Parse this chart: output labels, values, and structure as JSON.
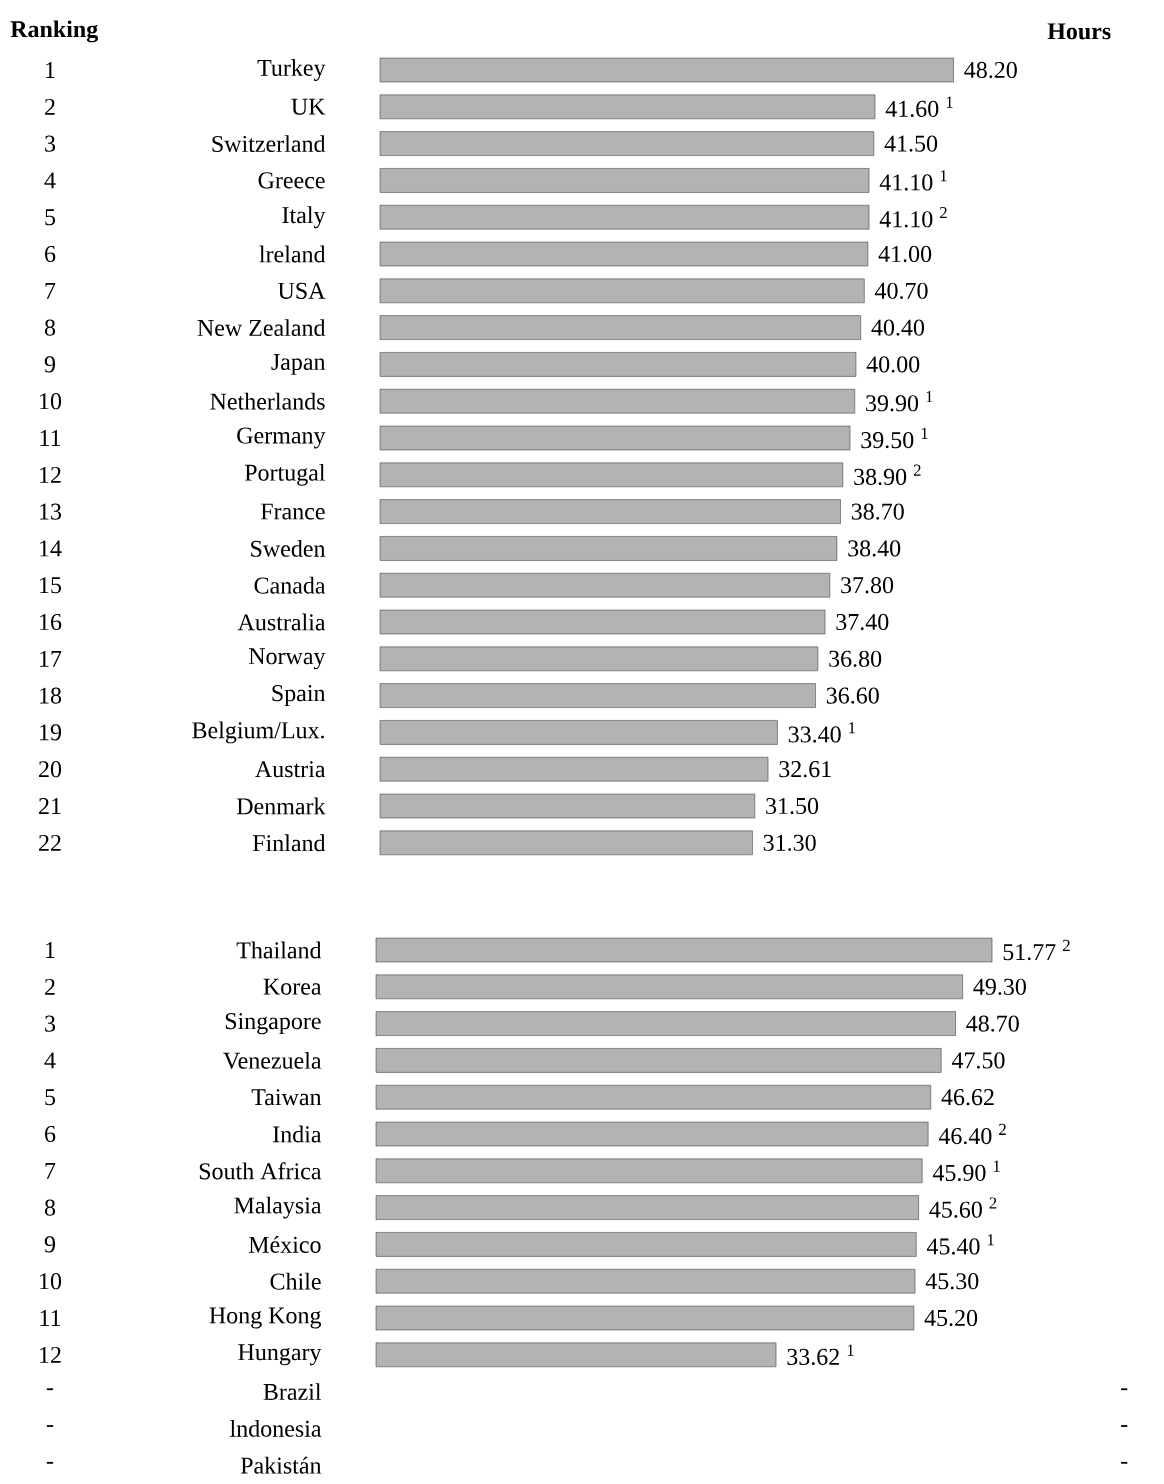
{
  "chart_data": [
    {
      "type": "bar",
      "orientation": "horizontal",
      "xlabel": "Hours",
      "ylabel": "Ranking",
      "color": "#b3b3b3",
      "categories": [
        "Turkey",
        "UK",
        "Switzerland",
        "Greece",
        "Italy",
        "lreland",
        "USA",
        "New Zealand",
        "Japan",
        "Netherlands",
        "Germany",
        "Portugal",
        "France",
        "Sweden",
        "Canada",
        "Australia",
        "Norway",
        "Spain",
        "Belgium/Lux.",
        "Austria",
        "Denmark",
        "Finland"
      ],
      "values": [
        48.2,
        41.6,
        41.5,
        41.1,
        41.1,
        41.0,
        40.7,
        40.4,
        40.0,
        39.9,
        39.5,
        38.9,
        38.7,
        38.4,
        37.8,
        37.4,
        36.8,
        36.6,
        33.4,
        32.61,
        31.5,
        31.3
      ],
      "value_labels": [
        "48.20",
        "41.60 $^{1}$",
        "41.50",
        "41.10 $^{1}$",
        "41.10 $^{2}$",
        "41.00",
        "40.70",
        "40.40",
        "40.00",
        "39.90 $^{1}$",
        "39.50 $^{1}$",
        "38.90 $^{2}$",
        "38.70",
        "38.40",
        "37.80",
        "37.40",
        "36.80",
        "36.60",
        "33.40 $^{1}$",
        "32.61",
        "31.50",
        "31.30"
      ],
      "annotations": [
        "1",
        "2",
        "3",
        "4",
        "5",
        "6",
        "7",
        "8",
        "9",
        "10",
        "11",
        "12",
        "13",
        "14",
        "15",
        "16",
        "17",
        "18",
        "19",
        "20",
        "21",
        "22"
      ]
    },
    {
      "type": "bar",
      "orientation": "horizontal",
      "color": "#b3b3b3",
      "categories": [
        "Thailand",
        "Korea",
        "Singapore",
        "Venezuela",
        "Taiwan",
        "India",
        "South Africa",
        "Malaysia",
        "México",
        "Chile",
        "Hong Kong",
        "Hungary",
        "Brazil",
        "lndonesia",
        "Pakistán"
      ],
      "values": [
        51.77,
        49.3,
        48.7,
        47.5,
        46.62,
        46.4,
        45.9,
        45.6,
        45.4,
        45.3,
        45.2,
        33.62,
        null,
        null,
        null
      ],
      "value_labels": [
        "51.77 $^{2}$",
        "49.30",
        "48.70",
        "47.50",
        "46.62",
        "46.40 $^{2}$",
        "45.90 $^{1}$",
        "45.60 $^{2}$",
        "45.40 $^{1}$",
        "45.30",
        "45.20",
        "33.62 $^{1}$",
        "-",
        "-",
        "-"
      ],
      "annotations": [
        "1",
        "2",
        "3",
        "4",
        "5",
        "6",
        "7",
        "8",
        "9",
        "10",
        "11",
        "12",
        "-",
        "-",
        "-"
      ]
    }
  ]
}
